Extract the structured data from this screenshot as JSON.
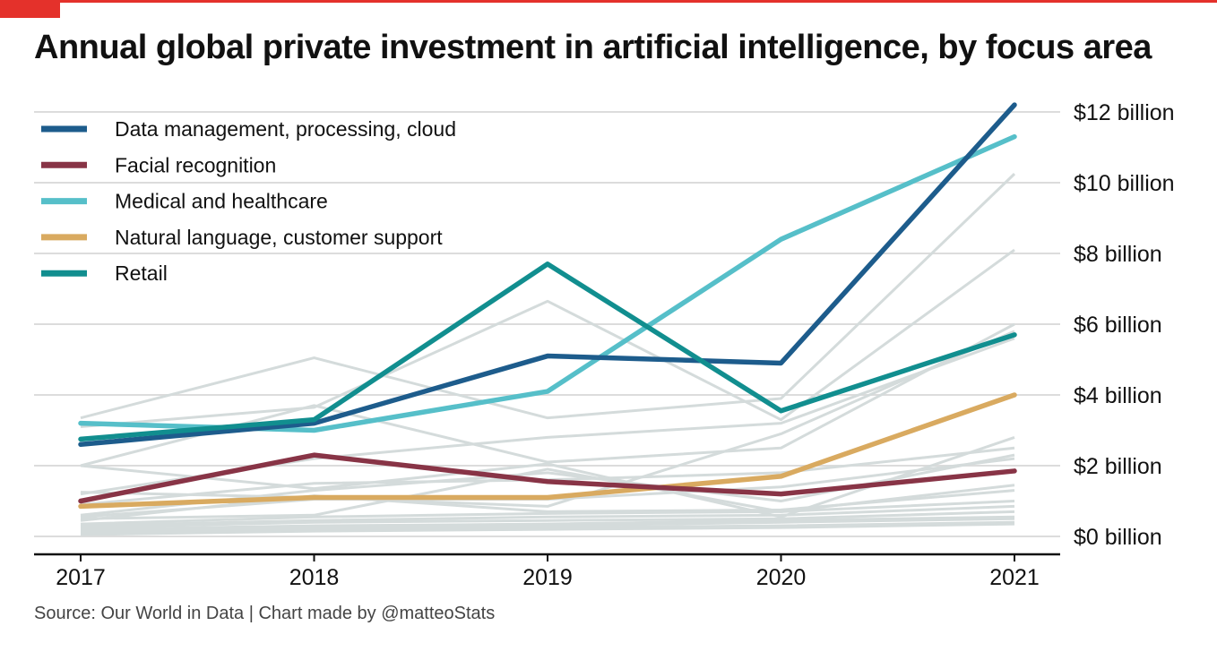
{
  "title": "Annual global private investment in artificial intelligence, by focus area",
  "source": "Source: Our World in Data | Chart made by @matteoStats",
  "chart_data": {
    "type": "line",
    "title": "Annual global private investment in artificial intelligence, by focus area",
    "x": [
      "2017",
      "2018",
      "2019",
      "2020",
      "2021"
    ],
    "ylim": [
      0,
      12
    ],
    "y_ticks": [
      0,
      2,
      4,
      6,
      8,
      10,
      12
    ],
    "y_tick_labels": [
      "$0 billion",
      "$2 billion",
      "$4 billion",
      "$6 billion",
      "$8 billion",
      "$10 billion",
      "$12 billion"
    ],
    "grid": "horizontal",
    "legend_position": "top-left",
    "highlighted_series": [
      {
        "name": "Data management, processing, cloud",
        "color": "#1d5c8c",
        "values": [
          2.6,
          3.2,
          5.1,
          4.9,
          12.2
        ]
      },
      {
        "name": "Facial recognition",
        "color": "#883446",
        "values": [
          1.0,
          2.3,
          1.55,
          1.2,
          1.85
        ]
      },
      {
        "name": "Medical and healthcare",
        "color": "#56bfc9",
        "values": [
          3.2,
          3.0,
          4.1,
          8.4,
          11.3
        ]
      },
      {
        "name": "Natural language, customer support",
        "color": "#d9aa60",
        "values": [
          0.85,
          1.1,
          1.1,
          1.7,
          4.0
        ]
      },
      {
        "name": "Retail",
        "color": "#118e8f",
        "values": [
          2.75,
          3.3,
          7.7,
          3.55,
          5.7
        ]
      }
    ],
    "background_series_color": "#d4dbdb",
    "background_series": [
      [
        3.35,
        5.05,
        3.35,
        3.9,
        10.25
      ],
      [
        3.1,
        3.65,
        6.65,
        3.3,
        8.1
      ],
      [
        1.2,
        2.2,
        2.8,
        3.2,
        5.6
      ],
      [
        2.0,
        3.7,
        2.1,
        2.5,
        6.0
      ],
      [
        1.25,
        1.1,
        0.85,
        2.9,
        5.8
      ],
      [
        2.0,
        1.35,
        2.05,
        0.55,
        2.8
      ],
      [
        0.9,
        1.5,
        1.6,
        1.8,
        2.5
      ],
      [
        0.6,
        1.3,
        1.8,
        1.0,
        2.3
      ],
      [
        0.55,
        1.05,
        1.05,
        1.4,
        2.2
      ],
      [
        0.5,
        0.6,
        1.9,
        0.7,
        1.45
      ],
      [
        0.45,
        1.15,
        0.7,
        0.75,
        1.3
      ],
      [
        0.35,
        0.55,
        0.65,
        0.7,
        1.0
      ],
      [
        0.3,
        0.45,
        0.55,
        0.6,
        0.85
      ],
      [
        0.25,
        0.4,
        0.45,
        0.5,
        0.7
      ],
      [
        0.2,
        0.3,
        0.35,
        0.45,
        0.55
      ],
      [
        0.15,
        0.25,
        0.3,
        0.4,
        0.5
      ],
      [
        0.1,
        0.2,
        0.25,
        0.3,
        0.4
      ],
      [
        0.05,
        0.15,
        0.2,
        0.25,
        0.35
      ]
    ]
  }
}
